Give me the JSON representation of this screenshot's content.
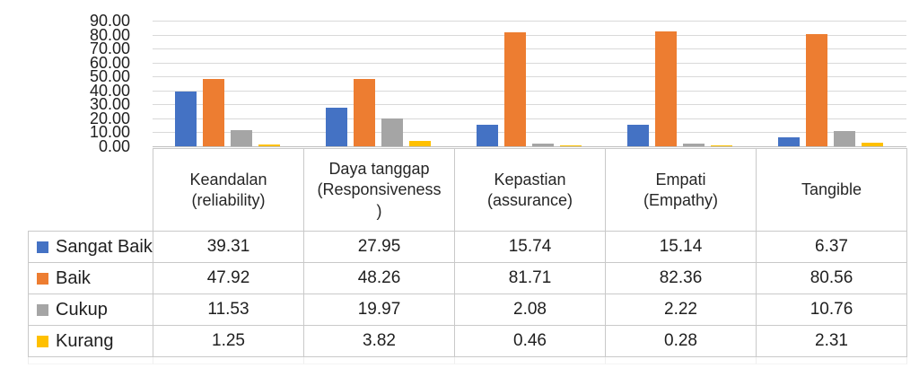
{
  "chart_data": {
    "type": "bar",
    "title": "",
    "xlabel": "",
    "ylabel": "",
    "grid": true,
    "legend_position": "table-rows-left",
    "ylim": [
      0,
      90
    ],
    "ytick_step": 10,
    "ytick_labels": [
      "90.00",
      "80.00",
      "70.00",
      "60.00",
      "50.00",
      "40.00",
      "30.00",
      "20.00",
      "10.00",
      "0.00"
    ],
    "value_format_decimals": 2,
    "categories": [
      "Keandalan (reliability)",
      "Daya tanggap (Responsiveness )",
      "Kepastian (assurance)",
      "Empati (Empathy)",
      "Tangible"
    ],
    "categories_display": [
      "Keandalan\n(reliability)",
      "Daya tanggap\n(Responsiveness\n)",
      "Kepastian\n(assurance)",
      "Empati\n(Empathy)",
      "Tangible"
    ],
    "series": [
      {
        "name": "Sangat Baik",
        "color": "#4472C4",
        "values": [
          39.31,
          27.95,
          15.74,
          15.14,
          6.37
        ]
      },
      {
        "name": "Baik",
        "color": "#ED7D31",
        "values": [
          47.92,
          48.26,
          81.71,
          82.36,
          80.56
        ]
      },
      {
        "name": "Cukup",
        "color": "#A5A5A5",
        "values": [
          11.53,
          19.97,
          2.08,
          2.22,
          10.76
        ]
      },
      {
        "name": "Kurang",
        "color": "#FFC000",
        "values": [
          1.25,
          3.82,
          0.46,
          0.28,
          2.31
        ]
      }
    ]
  }
}
